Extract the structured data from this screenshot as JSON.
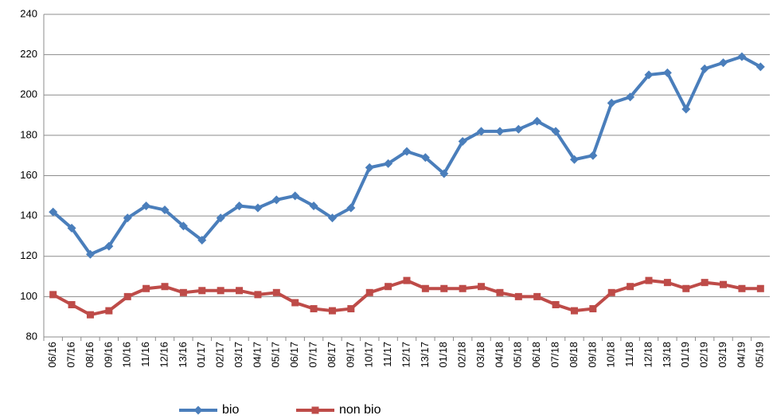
{
  "chart_data": {
    "type": "line",
    "categories": [
      "06/16",
      "07/16",
      "08/16",
      "09/16",
      "10/16",
      "11/16",
      "12/16",
      "13/16",
      "01/17",
      "02/17",
      "03/17",
      "04/17",
      "05/17",
      "06/17",
      "07/17",
      "08/17",
      "09/17",
      "10/17",
      "11/17",
      "12/17",
      "13/17",
      "01/18",
      "02/18",
      "03/18",
      "04/18",
      "05/18",
      "06/18",
      "07/18",
      "08/18",
      "09/18",
      "10/18",
      "11/18",
      "12/18",
      "13/18",
      "01/19",
      "02/19",
      "03/19",
      "04/19",
      "05/19"
    ],
    "series": [
      {
        "name": "bio",
        "color": "#4a7ebb",
        "marker": "diamond",
        "values": [
          142,
          134,
          121,
          125,
          139,
          145,
          143,
          135,
          128,
          139,
          145,
          144,
          148,
          150,
          145,
          139,
          144,
          164,
          166,
          172,
          169,
          161,
          177,
          182,
          182,
          183,
          187,
          182,
          168,
          170,
          196,
          199,
          210,
          211,
          193,
          213,
          216,
          219,
          214
        ]
      },
      {
        "name": "non bio",
        "color": "#be4b48",
        "marker": "square",
        "values": [
          101,
          96,
          91,
          93,
          100,
          104,
          105,
          102,
          103,
          103,
          103,
          101,
          102,
          97,
          94,
          93,
          94,
          102,
          105,
          108,
          104,
          104,
          104,
          105,
          102,
          100,
          100,
          96,
          93,
          94,
          102,
          105,
          108,
          107,
          104,
          107,
          106,
          104,
          104
        ]
      }
    ],
    "ylim": [
      80,
      240
    ],
    "yticks": [
      80,
      100,
      120,
      140,
      160,
      180,
      200,
      220,
      240
    ],
    "grid": true
  }
}
